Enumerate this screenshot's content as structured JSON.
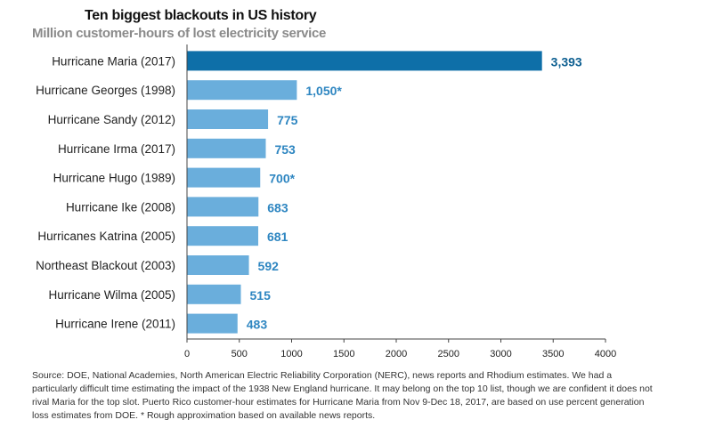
{
  "header": {
    "title": "Ten biggest blackouts in US history",
    "subtitle": "Million customer-hours of lost electricity service"
  },
  "source_note": "Source: DOE, National Academies, North American Electric Reliability Corporation (NERC), news reports and Rhodium estimates. We had a particularly difficult time estimating the impact of the 1938 New England hurricane. It may belong on the top 10 list, though we are confident it does not rival Maria for the top slot. Puerto Rico customer-hour estimates for Hurricane Maria from Nov 9-Dec 18, 2017, are based on use percent generation loss estimates from DOE. * Rough approximation based on available news reports.",
  "colors": {
    "highlight_bar": "#0e6fa8",
    "bar": "#6aaedc",
    "highlight_label": "#0d5f91",
    "label": "#2e86c1"
  },
  "chart_data": {
    "type": "bar",
    "orientation": "horizontal",
    "title": "Ten biggest blackouts in US history",
    "subtitle": "Million customer-hours of lost electricity service",
    "categories": [
      "Hurricane Maria (2017)",
      "Hurricane Georges (1998)",
      "Hurricane Sandy (2012)",
      "Hurricane Irma (2017)",
      "Hurricane Hugo (1989)",
      "Hurricane Ike (2008)",
      "Hurricanes Katrina (2005)",
      "Northeast Blackout (2003)",
      "Hurricane Wilma (2005)",
      "Hurricane Irene (2011)"
    ],
    "values": [
      3393,
      1050,
      775,
      753,
      700,
      683,
      681,
      592,
      515,
      483
    ],
    "value_labels": [
      "3,393",
      "1,050*",
      "775",
      "753",
      "700*",
      "683",
      "681",
      "592",
      "515",
      "483"
    ],
    "highlight_index": 0,
    "xlim": [
      0,
      4000
    ],
    "xticks": [
      0,
      500,
      1000,
      1500,
      2000,
      2500,
      3000,
      3500,
      4000
    ],
    "xtick_labels": [
      "0",
      "500",
      "1000",
      "1500",
      "2000",
      "2500",
      "3000",
      "3500",
      "4000"
    ],
    "grid": false,
    "legend": "none"
  }
}
